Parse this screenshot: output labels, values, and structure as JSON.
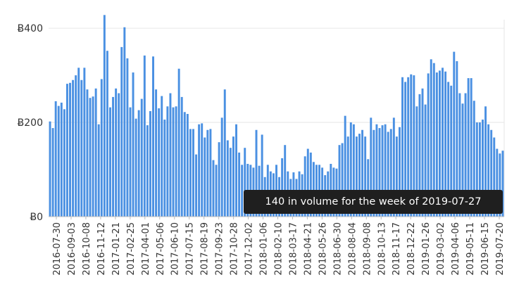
{
  "chart_data": {
    "type": "bar",
    "currency_symbol": "Ƀ",
    "y_ticks": [
      {
        "value": 0,
        "label": "Ƀ0"
      },
      {
        "value": 200,
        "label": "Ƀ200"
      },
      {
        "value": 400,
        "label": "Ƀ400"
      }
    ],
    "ylim": [
      0,
      430
    ],
    "grid": true,
    "bar_color": "#4a90e2",
    "x_tick_labels": [
      "2016-07-30",
      "2016-09-03",
      "2016-10-08",
      "2016-11-12",
      "2017-01-21",
      "2017-02-25",
      "2017-04-01",
      "2017-05-06",
      "2017-06-10",
      "2017-07-15",
      "2017-08-19",
      "2017-09-23",
      "2017-10-28",
      "2017-12-02",
      "2018-01-06",
      "2018-02-10",
      "2018-03-17",
      "2018-04-21",
      "2018-05-26",
      "2018-06-30",
      "2018-08-04",
      "2018-09-08",
      "2018-10-13",
      "2018-11-17",
      "2018-12-22",
      "2019-01-26",
      "2019-03-02",
      "2019-04-06",
      "2019-05-11",
      "2019-06-15",
      "2019-07-20"
    ],
    "values": [
      202,
      188,
      245,
      235,
      242,
      228,
      282,
      284,
      290,
      300,
      316,
      290,
      316,
      270,
      252,
      255,
      272,
      196,
      292,
      428,
      352,
      232,
      254,
      272,
      262,
      360,
      402,
      336,
      232,
      306,
      208,
      226,
      250,
      342,
      194,
      224,
      340,
      270,
      230,
      256,
      206,
      234,
      262,
      232,
      234,
      314,
      254,
      222,
      218,
      186,
      186,
      132,
      196,
      198,
      168,
      184,
      186,
      120,
      110,
      158,
      210,
      270,
      162,
      146,
      170,
      196,
      136,
      110,
      146,
      112,
      110,
      104,
      184,
      108,
      174,
      84,
      110,
      96,
      92,
      110,
      84,
      124,
      152,
      96,
      80,
      94,
      80,
      96,
      90,
      128,
      144,
      136,
      116,
      110,
      110,
      104,
      88,
      96,
      112,
      104,
      102,
      152,
      156,
      214,
      170,
      200,
      196,
      170,
      176,
      184,
      170,
      122,
      210,
      184,
      196,
      188,
      194,
      196,
      180,
      186,
      210,
      170,
      190,
      296,
      286,
      296,
      302,
      300,
      234,
      260,
      272,
      238,
      304,
      334,
      326,
      306,
      310,
      316,
      308,
      286,
      278,
      350,
      330,
      262,
      240,
      262,
      294,
      294,
      246,
      200,
      200,
      206,
      234,
      196,
      184,
      168,
      144,
      134,
      140
    ],
    "tooltip": "140 in volume for the week of 2019-07-27"
  }
}
